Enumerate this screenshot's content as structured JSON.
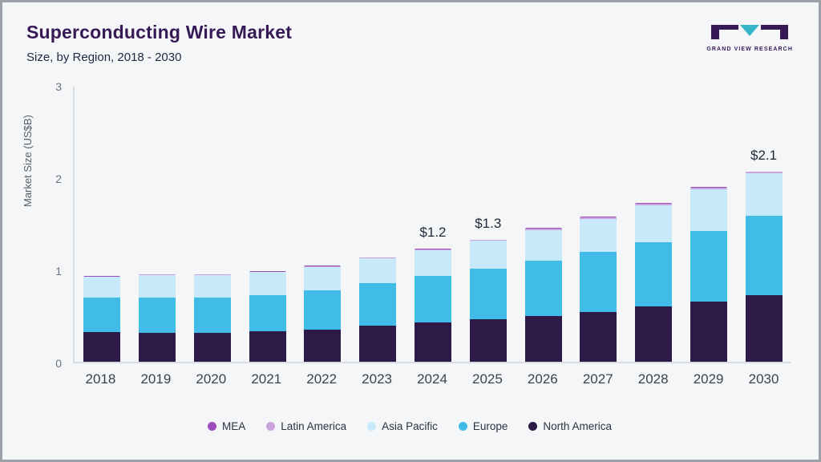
{
  "header": {
    "title": "Superconducting Wire Market",
    "subtitle": "Size, by Region, 2018 - 2030"
  },
  "logo": {
    "caption": "GRAND VIEW RESEARCH"
  },
  "chart_data": {
    "type": "bar",
    "stacked": true,
    "title": "Superconducting Wire Market Size, by Region, 2018 - 2030",
    "ylabel": "Market Size (US$B)",
    "ylim": [
      0,
      3
    ],
    "yticks": [
      0,
      1,
      2,
      3
    ],
    "grid": false,
    "legend_position": "bottom",
    "categories": [
      "2018",
      "2019",
      "2020",
      "2021",
      "2022",
      "2023",
      "2024",
      "2025",
      "2026",
      "2027",
      "2028",
      "2029",
      "2030"
    ],
    "series": [
      {
        "name": "North America",
        "color": "#2e1a47",
        "values": [
          0.32,
          0.31,
          0.31,
          0.33,
          0.35,
          0.39,
          0.43,
          0.46,
          0.5,
          0.54,
          0.6,
          0.65,
          0.72
        ]
      },
      {
        "name": "Europe",
        "color": "#41bce8",
        "values": [
          0.38,
          0.39,
          0.39,
          0.39,
          0.42,
          0.46,
          0.5,
          0.55,
          0.6,
          0.65,
          0.7,
          0.77,
          0.86
        ]
      },
      {
        "name": "Asia Pacific",
        "color": "#c8e9f9",
        "values": [
          0.22,
          0.24,
          0.24,
          0.25,
          0.26,
          0.27,
          0.28,
          0.3,
          0.33,
          0.36,
          0.4,
          0.45,
          0.46
        ]
      },
      {
        "name": "Latin America",
        "color": "#cba3dc",
        "values": [
          0.005,
          0.005,
          0.005,
          0.005,
          0.008,
          0.008,
          0.01,
          0.01,
          0.015,
          0.015,
          0.015,
          0.02,
          0.02
        ]
      },
      {
        "name": "MEA",
        "color": "#9b4dbb",
        "values": [
          0.004,
          0.004,
          0.004,
          0.004,
          0.004,
          0.004,
          0.005,
          0.005,
          0.005,
          0.005,
          0.005,
          0.005,
          0.005
        ]
      }
    ],
    "annotations": [
      {
        "category": "2024",
        "label": "$1.2"
      },
      {
        "category": "2025",
        "label": "$1.3"
      },
      {
        "category": "2030",
        "label": "$2.1"
      }
    ],
    "legend": [
      "MEA",
      "Latin America",
      "Asia Pacific",
      "Europe",
      "North America"
    ]
  }
}
